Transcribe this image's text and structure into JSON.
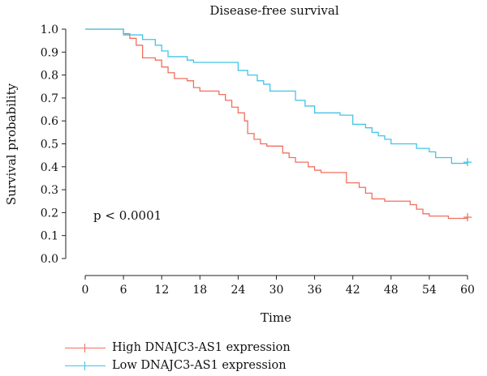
{
  "chart_data": {
    "type": "line",
    "title": "Disease-free survival",
    "xlabel": "Time",
    "ylabel": "Survival probability",
    "annotation": "p < 0.0001",
    "xlim": [
      0,
      60
    ],
    "ylim": [
      0,
      1
    ],
    "xticks": [
      0,
      6,
      12,
      18,
      24,
      30,
      36,
      42,
      48,
      54,
      60
    ],
    "yticks": [
      "0.0",
      "0.1",
      "0.2",
      "0.3",
      "0.4",
      "0.5",
      "0.6",
      "0.7",
      "0.8",
      "0.9",
      "1.0"
    ],
    "grid": false,
    "legend_position": "bottom-left",
    "series": [
      {
        "name": "High DNAJC3-AS1 expression",
        "color": "#f07060",
        "censor_at": [
          60,
          0.18
        ],
        "points": [
          [
            0,
            1.0
          ],
          [
            6,
            0.98
          ],
          [
            7,
            0.96
          ],
          [
            8,
            0.93
          ],
          [
            9,
            0.875
          ],
          [
            11,
            0.865
          ],
          [
            12,
            0.835
          ],
          [
            13,
            0.81
          ],
          [
            14,
            0.785
          ],
          [
            16,
            0.775
          ],
          [
            17,
            0.745
          ],
          [
            18,
            0.73
          ],
          [
            21,
            0.715
          ],
          [
            22,
            0.69
          ],
          [
            23,
            0.66
          ],
          [
            24,
            0.635
          ],
          [
            25,
            0.6
          ],
          [
            25.5,
            0.545
          ],
          [
            26.5,
            0.52
          ],
          [
            27.5,
            0.5
          ],
          [
            28.5,
            0.49
          ],
          [
            31,
            0.46
          ],
          [
            32,
            0.44
          ],
          [
            33,
            0.42
          ],
          [
            35,
            0.4
          ],
          [
            36,
            0.385
          ],
          [
            37,
            0.375
          ],
          [
            41,
            0.33
          ],
          [
            43,
            0.31
          ],
          [
            44,
            0.285
          ],
          [
            45,
            0.26
          ],
          [
            47,
            0.25
          ],
          [
            51,
            0.235
          ],
          [
            52,
            0.215
          ],
          [
            53,
            0.195
          ],
          [
            54,
            0.185
          ],
          [
            57,
            0.175
          ],
          [
            60,
            0.18
          ]
        ]
      },
      {
        "name": "Low DNAJC3-AS1 expression",
        "color": "#43c4e6",
        "censor_at": [
          60,
          0.42
        ],
        "points": [
          [
            0,
            1.0
          ],
          [
            6,
            0.975
          ],
          [
            9,
            0.955
          ],
          [
            11,
            0.93
          ],
          [
            12,
            0.905
          ],
          [
            13,
            0.88
          ],
          [
            16,
            0.865
          ],
          [
            17,
            0.855
          ],
          [
            24,
            0.82
          ],
          [
            25.5,
            0.8
          ],
          [
            27,
            0.775
          ],
          [
            28,
            0.76
          ],
          [
            29,
            0.73
          ],
          [
            33,
            0.69
          ],
          [
            34.5,
            0.665
          ],
          [
            36,
            0.635
          ],
          [
            40,
            0.625
          ],
          [
            42,
            0.585
          ],
          [
            44,
            0.57
          ],
          [
            45,
            0.55
          ],
          [
            46,
            0.535
          ],
          [
            47,
            0.52
          ],
          [
            48,
            0.5
          ],
          [
            52,
            0.48
          ],
          [
            54,
            0.465
          ],
          [
            55,
            0.44
          ],
          [
            57.5,
            0.415
          ],
          [
            60,
            0.42
          ]
        ]
      }
    ]
  }
}
